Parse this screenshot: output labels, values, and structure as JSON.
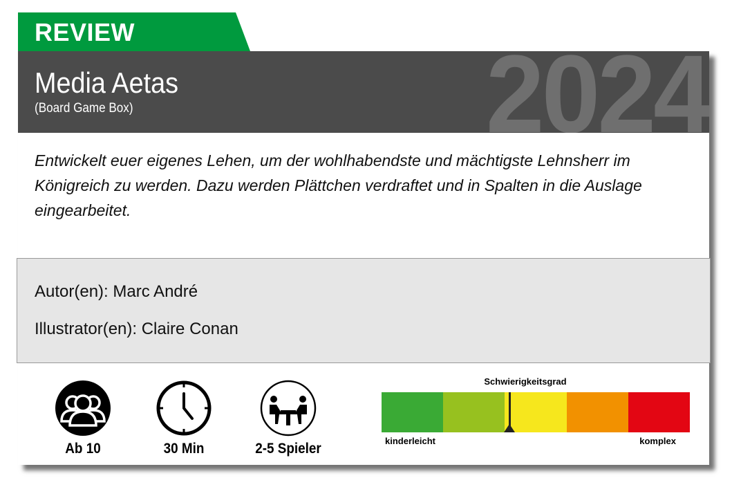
{
  "badge": "REVIEW",
  "header": {
    "title": "Media Aetas",
    "subtitle": "(Board Game Box)",
    "year": "2024"
  },
  "description": "Entwickelt euer eigenes Lehen, um der wohlhabendste und mächtigste Lehnsherr im Königreich zu werden. Dazu werden Plättchen verdraftet und in Spalten in die Auslage eingearbeitet.",
  "credits": {
    "authors": "Autor(en): Marc André",
    "illustrators": "Illustrator(en): Claire Conan"
  },
  "stats": [
    {
      "icon": "people-icon",
      "label": "Ab 10"
    },
    {
      "icon": "clock-icon",
      "label": "30 Min"
    },
    {
      "icon": "players-table-icon",
      "label": "2-5 Spieler"
    }
  ],
  "difficulty": {
    "title": "Schwierigkeitsgrad",
    "min_label": "kinderleicht",
    "max_label": "komplex",
    "level_fraction": 0.415,
    "colors": [
      "#3aaa35",
      "#97c11f",
      "#f6e71d",
      "#f29100",
      "#e30613"
    ]
  },
  "colors": {
    "badge": "#009a3e",
    "header": "#4b4b4b"
  }
}
